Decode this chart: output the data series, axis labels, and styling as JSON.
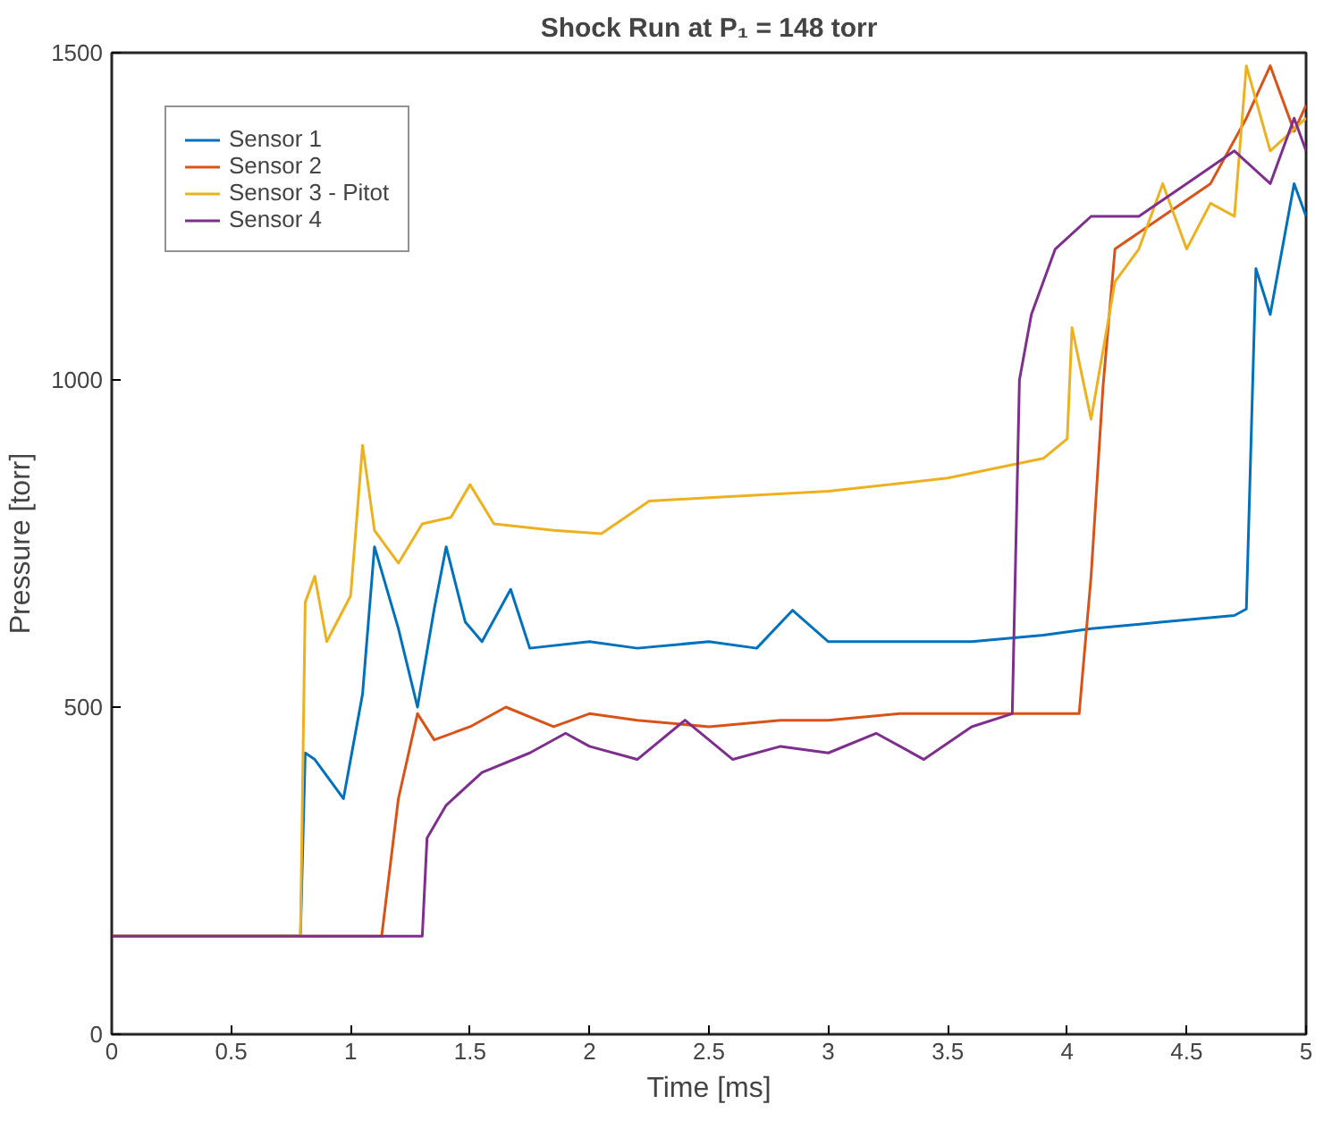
{
  "chart_data": {
    "type": "line",
    "title": "Shock Run at P₁ = 148 torr",
    "xlabel": "Time [ms]",
    "ylabel": "Pressure [torr]",
    "xlim": [
      0,
      5
    ],
    "ylim": [
      0,
      1500
    ],
    "xticks": [
      0,
      0.5,
      1,
      1.5,
      2,
      2.5,
      3,
      3.5,
      4,
      4.5,
      5
    ],
    "yticks": [
      0,
      500,
      1000,
      1500
    ],
    "grid": false,
    "legend": "top left",
    "line_style": "solid",
    "series": [
      {
        "name": "Sensor 1",
        "color": "#0072bd",
        "x": [
          0,
          0.5,
          0.79,
          0.81,
          0.85,
          0.97,
          1.05,
          1.1,
          1.2,
          1.28,
          1.35,
          1.4,
          1.48,
          1.55,
          1.67,
          1.75,
          2.0,
          2.2,
          2.5,
          2.7,
          2.85,
          3.0,
          3.3,
          3.6,
          3.9,
          4.1,
          4.4,
          4.7,
          4.75,
          4.79,
          4.85,
          4.95,
          5.0
        ],
        "values": [
          150,
          150,
          150,
          430,
          420,
          360,
          520,
          745,
          620,
          500,
          650,
          745,
          630,
          600,
          680,
          590,
          600,
          590,
          600,
          590,
          648,
          600,
          600,
          600,
          610,
          620,
          630,
          640,
          650,
          1170,
          1100,
          1300,
          1250
        ]
      },
      {
        "name": "Sensor 2",
        "color": "#d95319",
        "x": [
          0,
          0.5,
          1.0,
          1.13,
          1.2,
          1.28,
          1.35,
          1.5,
          1.65,
          1.85,
          2.0,
          2.2,
          2.5,
          2.8,
          3.0,
          3.3,
          3.6,
          3.9,
          4.05,
          4.1,
          4.15,
          4.2,
          4.4,
          4.6,
          4.75,
          4.85,
          4.95,
          5.0
        ],
        "values": [
          150,
          150,
          150,
          150,
          360,
          490,
          450,
          470,
          500,
          470,
          490,
          480,
          470,
          480,
          480,
          490,
          490,
          490,
          490,
          700,
          990,
          1200,
          1250,
          1300,
          1400,
          1480,
          1380,
          1420
        ]
      },
      {
        "name": "Sensor 3 - Pitot",
        "color": "#edb120",
        "x": [
          0,
          0.5,
          0.79,
          0.81,
          0.85,
          0.9,
          1.0,
          1.05,
          1.1,
          1.2,
          1.3,
          1.42,
          1.5,
          1.6,
          1.85,
          2.05,
          2.25,
          2.5,
          3.0,
          3.5,
          3.9,
          4.0,
          4.02,
          4.1,
          4.2,
          4.3,
          4.4,
          4.5,
          4.6,
          4.7,
          4.75,
          4.85,
          5.0
        ],
        "values": [
          150,
          150,
          150,
          660,
          700,
          600,
          670,
          900,
          770,
          720,
          780,
          790,
          840,
          780,
          770,
          765,
          815,
          820,
          830,
          850,
          880,
          910,
          1080,
          940,
          1150,
          1200,
          1300,
          1200,
          1270,
          1250,
          1480,
          1350,
          1400
        ]
      },
      {
        "name": "Sensor 4",
        "color": "#7e2f8e",
        "x": [
          0,
          0.5,
          1.0,
          1.3,
          1.32,
          1.4,
          1.55,
          1.75,
          1.9,
          2.0,
          2.2,
          2.4,
          2.6,
          2.8,
          3.0,
          3.2,
          3.4,
          3.6,
          3.77,
          3.8,
          3.85,
          3.95,
          4.1,
          4.3,
          4.5,
          4.7,
          4.85,
          4.95,
          5.0
        ],
        "values": [
          150,
          150,
          150,
          150,
          300,
          350,
          400,
          430,
          460,
          440,
          420,
          480,
          420,
          440,
          430,
          460,
          420,
          470,
          490,
          1000,
          1100,
          1200,
          1250,
          1250,
          1300,
          1350,
          1300,
          1400,
          1350
        ]
      }
    ]
  }
}
